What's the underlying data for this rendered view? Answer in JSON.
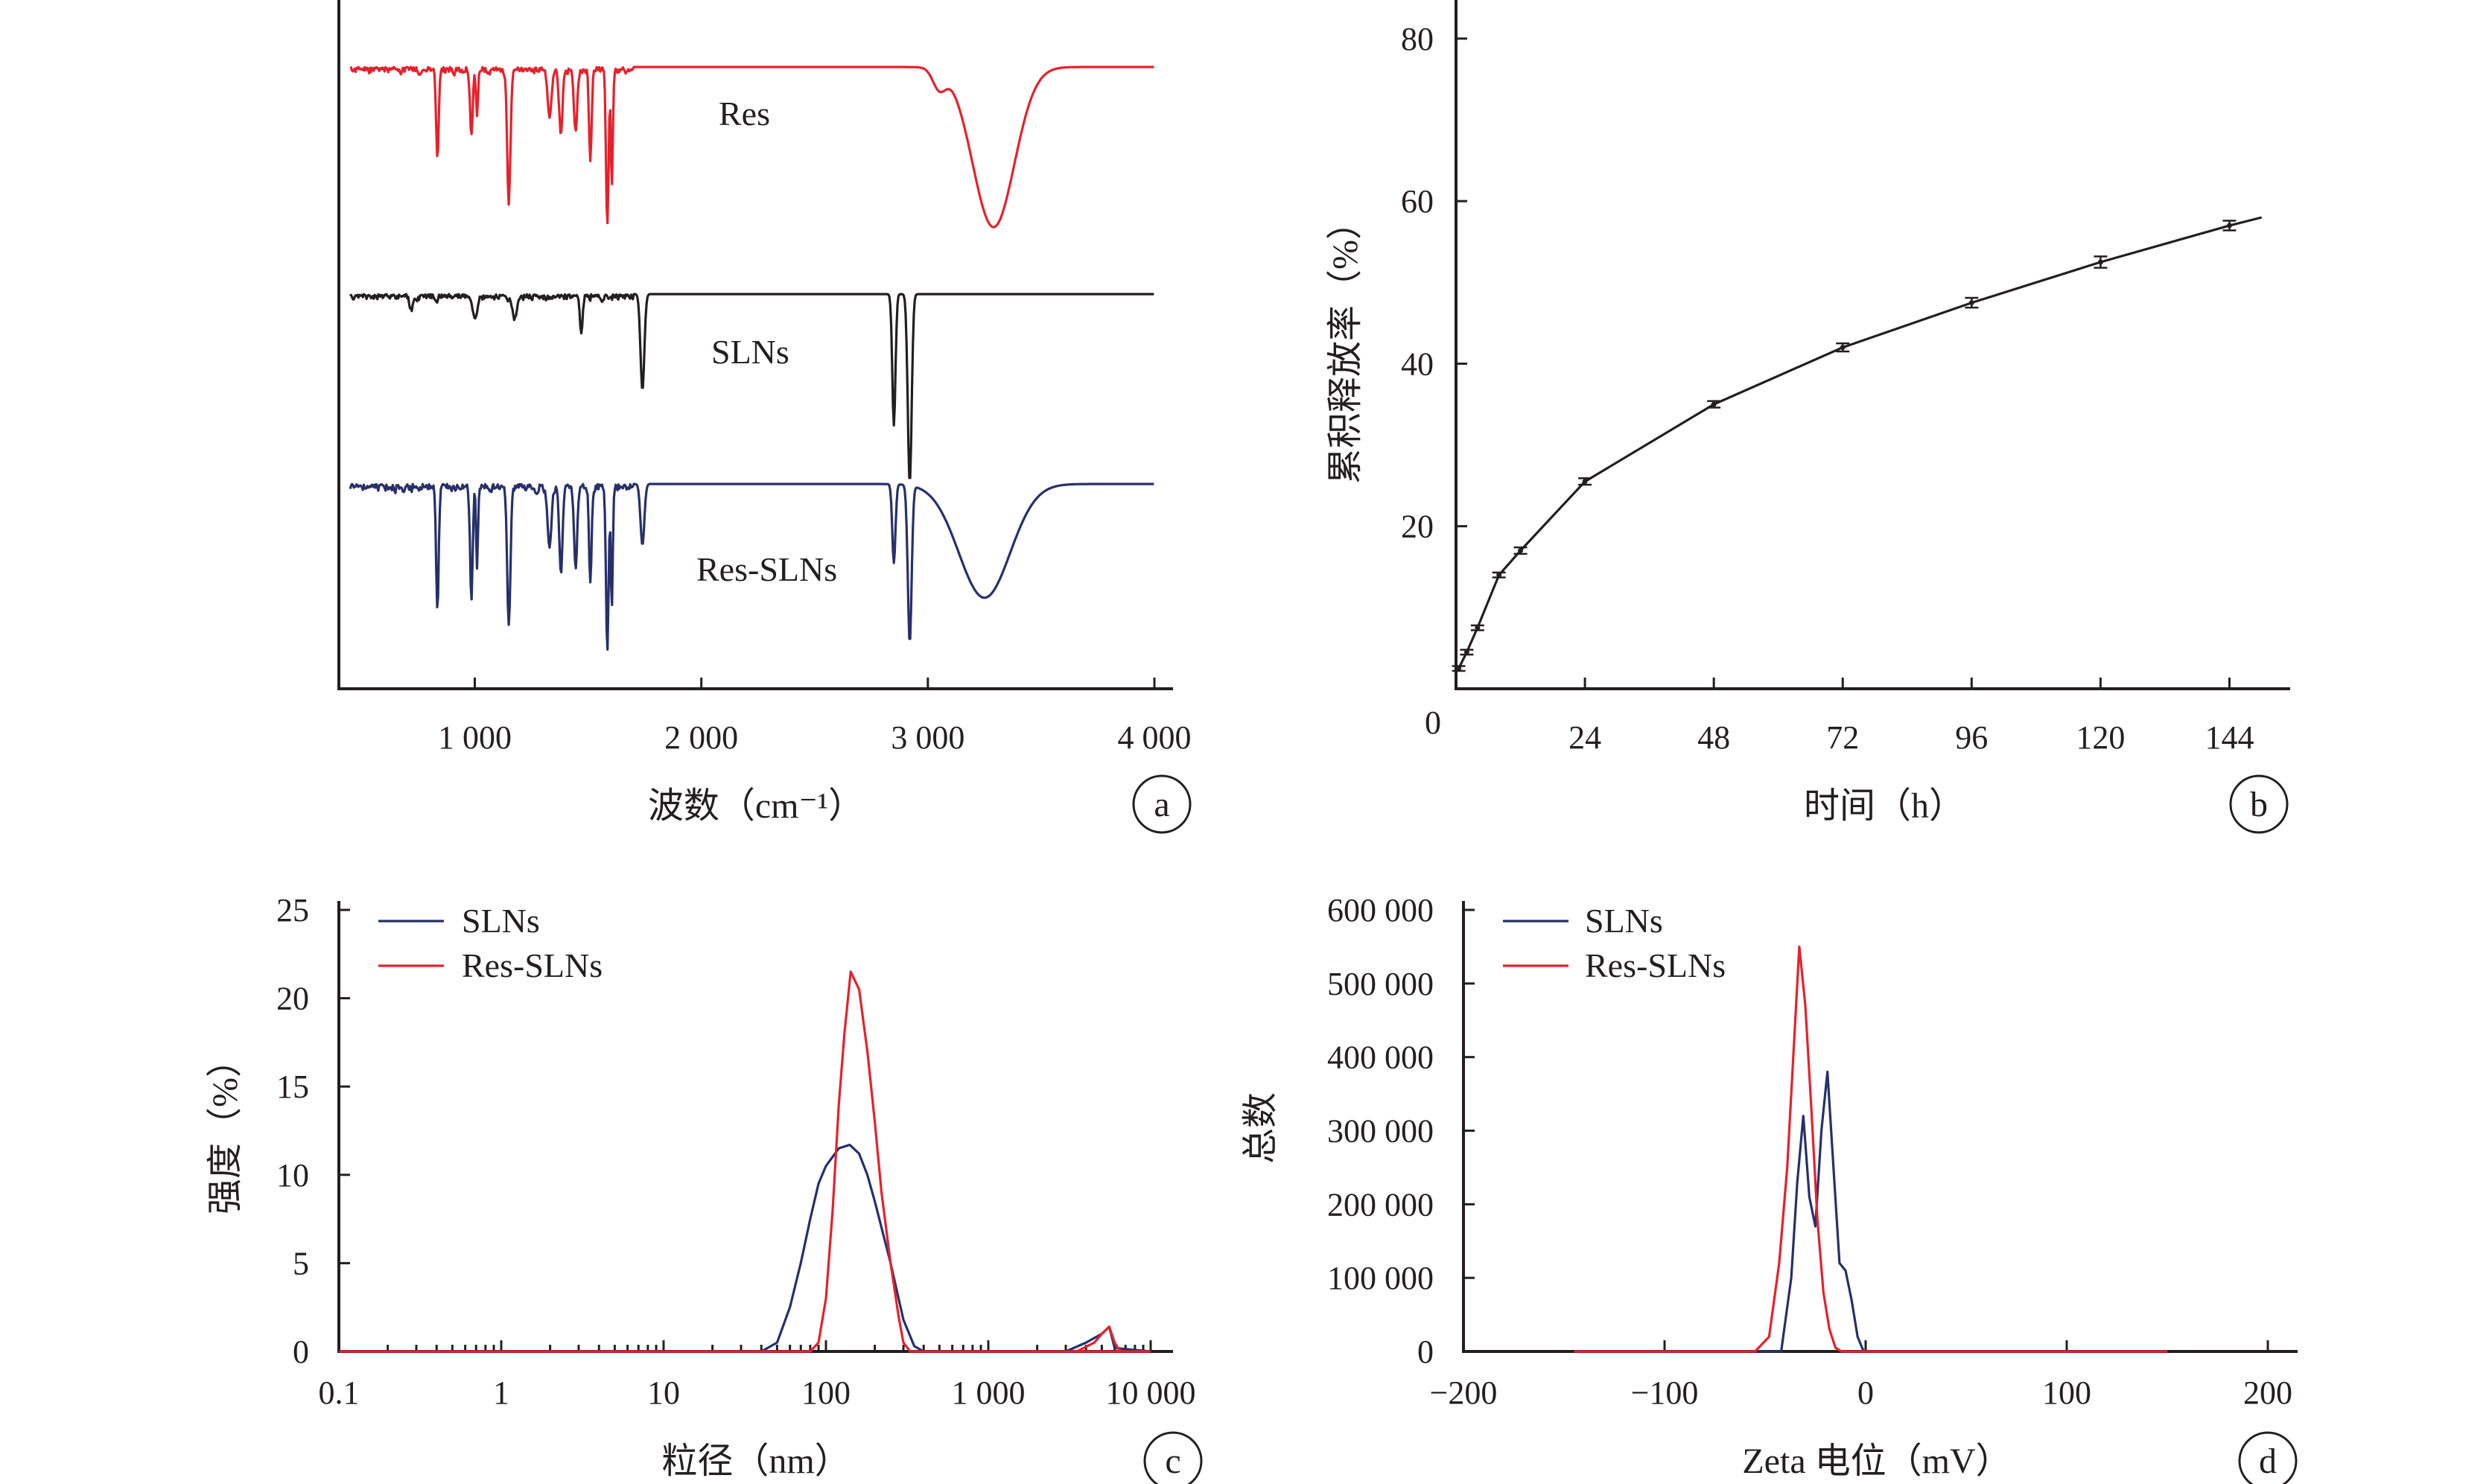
{
  "colors": {
    "red": "#e8202a",
    "black": "#231f20",
    "navy": "#26306b"
  },
  "chart_data": [
    {
      "id": "a",
      "panel_label": "a",
      "type": "line",
      "xlabel": "波数（cm⁻¹）",
      "ylabel": "",
      "xlim": [
        400,
        4000
      ],
      "xticks": [
        {
          "v": 1000,
          "label": "1 000"
        },
        {
          "v": 2000,
          "label": "2 000"
        },
        {
          "v": 3000,
          "label": "3 000"
        },
        {
          "v": 4000,
          "label": "4 000"
        }
      ],
      "series": [
        {
          "name": "Res",
          "color": "#e8202a",
          "baseline": 0.0,
          "noise": 0.06,
          "peaks": [
            [
              835,
              0.56,
              8
            ],
            [
              985,
              0.4,
              8
            ],
            [
              1010,
              0.3,
              6
            ],
            [
              1150,
              0.82,
              10
            ],
            [
              1330,
              0.3,
              12
            ],
            [
              1380,
              0.42,
              10
            ],
            [
              1445,
              0.4,
              10
            ],
            [
              1510,
              0.58,
              8
            ],
            [
              1585,
              0.98,
              8
            ],
            [
              1605,
              0.75,
              6
            ],
            [
              3050,
              0.12,
              40
            ],
            [
              3290,
              1.0,
              130
            ]
          ]
        },
        {
          "name": "SLNs",
          "color": "#231f20",
          "baseline": 1.45,
          "noise": 0.05,
          "peaks": [
            [
              720,
              0.08,
              10
            ],
            [
              1000,
              0.12,
              15
            ],
            [
              1175,
              0.12,
              15
            ],
            [
              1470,
              0.22,
              8
            ],
            [
              1740,
              0.55,
              12
            ],
            [
              2850,
              0.75,
              10
            ],
            [
              2920,
              1.1,
              12
            ]
          ]
        },
        {
          "name": "Res-SLNs",
          "color": "#26306b",
          "baseline": 2.65,
          "noise": 0.06,
          "peaks": [
            [
              835,
              0.7,
              8
            ],
            [
              985,
              0.65,
              8
            ],
            [
              1010,
              0.45,
              6
            ],
            [
              1150,
              0.8,
              10
            ],
            [
              1330,
              0.35,
              12
            ],
            [
              1380,
              0.5,
              10
            ],
            [
              1445,
              0.45,
              10
            ],
            [
              1510,
              0.55,
              8
            ],
            [
              1585,
              0.95,
              8
            ],
            [
              1605,
              0.7,
              6
            ],
            [
              1740,
              0.35,
              12
            ],
            [
              2850,
              0.45,
              10
            ],
            [
              2920,
              0.9,
              12
            ],
            [
              3250,
              0.65,
              160
            ]
          ]
        }
      ]
    },
    {
      "id": "b",
      "panel_label": "b",
      "type": "line",
      "xlabel": "时间（h）",
      "ylabel": "累积释放率（%）",
      "xlim": [
        0,
        156
      ],
      "ylim": [
        0,
        82
      ],
      "xticks": [
        {
          "v": 24,
          "label": "24"
        },
        {
          "v": 48,
          "label": "48"
        },
        {
          "v": 72,
          "label": "72"
        },
        {
          "v": 96,
          "label": "96"
        },
        {
          "v": 120,
          "label": "120"
        },
        {
          "v": 144,
          "label": "144"
        }
      ],
      "yticks": [
        {
          "v": 20,
          "label": "20"
        },
        {
          "v": 40,
          "label": "40"
        },
        {
          "v": 60,
          "label": "60"
        },
        {
          "v": 80,
          "label": "80"
        }
      ],
      "origin_label": "0",
      "series": [
        {
          "name": "",
          "color": "#231f20",
          "x": [
            0.5,
            2,
            4,
            8,
            12,
            24,
            48,
            72,
            96,
            120,
            144,
            150
          ],
          "y": [
            2.5,
            4.5,
            7.5,
            14,
            17,
            25.5,
            35,
            42,
            47.5,
            52.5,
            57,
            58
          ],
          "err": [
            0.3,
            0.3,
            0.3,
            0.3,
            0.4,
            0.4,
            0.4,
            0.5,
            0.6,
            0.7,
            0.6,
            0
          ]
        }
      ]
    },
    {
      "id": "c",
      "panel_label": "c",
      "type": "line",
      "xlabel": "粒径（nm）",
      "ylabel": "强度（%）",
      "xscale": "log",
      "xlim": [
        0.1,
        10000
      ],
      "ylim": [
        0,
        25
      ],
      "xticks": [
        {
          "v": 0.1,
          "label": "0.1"
        },
        {
          "v": 1,
          "label": "1"
        },
        {
          "v": 10,
          "label": "10"
        },
        {
          "v": 100,
          "label": "100"
        },
        {
          "v": 1000,
          "label": "1 000"
        },
        {
          "v": 10000,
          "label": "10 000"
        }
      ],
      "yticks": [
        {
          "v": 0,
          "label": "0"
        },
        {
          "v": 5,
          "label": "5"
        },
        {
          "v": 10,
          "label": "10"
        },
        {
          "v": 15,
          "label": "15"
        },
        {
          "v": 20,
          "label": "20"
        },
        {
          "v": 25,
          "label": "25"
        }
      ],
      "legend": [
        "SLNs",
        "Res-SLNs"
      ],
      "series": [
        {
          "name": "SLNs",
          "color": "#26306b",
          "x": [
            0.1,
            40,
            50,
            60,
            70,
            80,
            90,
            100,
            120,
            140,
            160,
            180,
            200,
            250,
            300,
            350,
            400,
            3000,
            4000,
            5000,
            5560,
            6000,
            10000
          ],
          "y": [
            0,
            0,
            0.5,
            2.5,
            5,
            7.5,
            9.5,
            10.5,
            11.5,
            11.7,
            11.2,
            10,
            8.5,
            5,
            1.8,
            0.3,
            0,
            0,
            0.5,
            1.0,
            1.4,
            0.2,
            0
          ]
        },
        {
          "name": "Res-SLNs",
          "color": "#e8202a",
          "x": [
            0.1,
            80,
            90,
            100,
            110,
            120,
            130,
            142,
            160,
            180,
            200,
            220,
            250,
            280,
            300,
            330,
            10000
          ],
          "y": [
            0,
            0,
            0.5,
            3,
            8,
            14,
            18,
            21.5,
            20.5,
            17,
            13,
            9,
            5,
            2,
            0.5,
            0,
            0
          ]
        },
        {
          "name": "Res-SLNs",
          "color": "#e8202a",
          "x": [
            3500,
            4500,
            5000,
            5560,
            6000,
            6500
          ],
          "y": [
            0,
            0.5,
            1.0,
            1.4,
            0.5,
            0
          ]
        }
      ]
    },
    {
      "id": "d",
      "panel_label": "d",
      "type": "line",
      "xlabel": "Zeta 电位（mV）",
      "ylabel": "总数",
      "xlim": [
        -200,
        210
      ],
      "ylim": [
        0,
        600000
      ],
      "xticks": [
        {
          "v": -200,
          "label": "−200"
        },
        {
          "v": -100,
          "label": "−100"
        },
        {
          "v": 0,
          "label": "0"
        },
        {
          "v": 100,
          "label": "100"
        },
        {
          "v": 200,
          "label": "200"
        }
      ],
      "yticks": [
        {
          "v": 0,
          "label": "0"
        },
        {
          "v": 100000,
          "label": "100 000"
        },
        {
          "v": 200000,
          "label": "200 000"
        },
        {
          "v": 300000,
          "label": "300 000"
        },
        {
          "v": 400000,
          "label": "400 000"
        },
        {
          "v": 500000,
          "label": "500 000"
        },
        {
          "v": 600000,
          "label": "600 000"
        }
      ],
      "legend": [
        "SLNs",
        "Res-SLNs"
      ],
      "series": [
        {
          "name": "SLNs",
          "color": "#26306b",
          "x": [
            -145,
            -42,
            -37,
            -34,
            -31,
            -28,
            -25,
            -22,
            -19,
            -16,
            -13,
            -10,
            -7,
            -4,
            -1,
            2,
            150
          ],
          "y": [
            0,
            0,
            100000,
            230000,
            320000,
            210000,
            170000,
            300000,
            380000,
            250000,
            120000,
            110000,
            70000,
            20000,
            0,
            0,
            0
          ]
        },
        {
          "name": "Res-SLNs",
          "color": "#e8202a",
          "x": [
            -145,
            -55,
            -48,
            -43,
            -39,
            -36,
            -33,
            -30,
            -27,
            -24,
            -21,
            -18,
            -15,
            -12,
            150
          ],
          "y": [
            0,
            0,
            20000,
            120000,
            250000,
            400000,
            550000,
            470000,
            330000,
            180000,
            80000,
            30000,
            5000,
            0,
            0
          ]
        }
      ]
    }
  ]
}
